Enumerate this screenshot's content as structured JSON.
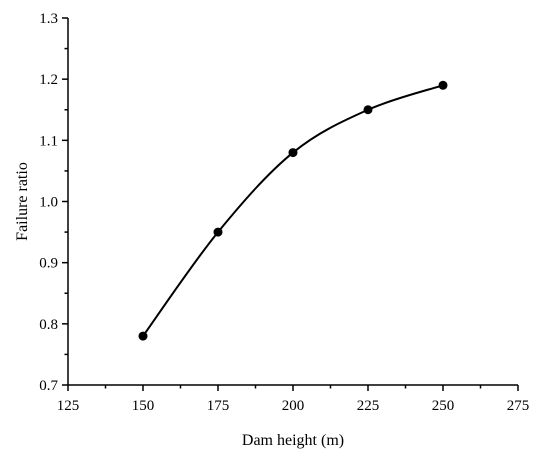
{
  "chart_data": {
    "type": "line",
    "title": "",
    "xlabel": "Dam height (m)",
    "ylabel": "Failure ratio",
    "xlim": [
      125,
      275
    ],
    "ylim": [
      0.7,
      1.3
    ],
    "xticks": [
      125,
      150,
      175,
      200,
      225,
      250,
      275
    ],
    "yticks": [
      0.7,
      0.8,
      0.9,
      1.0,
      1.1,
      1.2,
      1.3
    ],
    "xtick_labels": [
      "125",
      "150",
      "175",
      "200",
      "225",
      "250",
      "275"
    ],
    "ytick_labels": [
      "0.7",
      "0.8",
      "0.9",
      "1.0",
      "1.1",
      "1.2",
      "1.3"
    ],
    "grid": false,
    "legend": "none",
    "series": [
      {
        "x": [
          150,
          175,
          200,
          225,
          250
        ],
        "values": [
          0.78,
          0.95,
          1.08,
          1.15,
          1.19
        ],
        "color": "#000000",
        "marker": "circle",
        "smooth": true
      }
    ]
  }
}
